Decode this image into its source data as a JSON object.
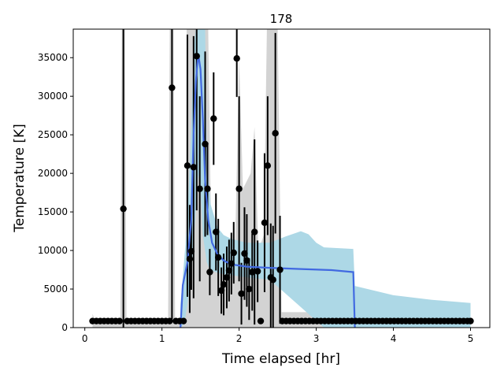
{
  "chart_data": {
    "type": "scatter",
    "title": "178",
    "xlabel": "Time elapsed [hr]",
    "ylabel": "Temperature [K]",
    "xlim": [
      -0.15,
      5.25
    ],
    "ylim": [
      0,
      38700
    ],
    "xticks": [
      0,
      1,
      2,
      3,
      4,
      5
    ],
    "yticks": [
      0,
      5000,
      10000,
      15000,
      20000,
      25000,
      30000,
      35000
    ],
    "grid": false,
    "legend": "none",
    "colors": {
      "points": "#000000",
      "fit_line": "#4169e1",
      "fit_band": "#add8e6",
      "gray_band": "#d3d3d3"
    },
    "points": [
      {
        "x": 0.1,
        "y": 850
      },
      {
        "x": 0.15,
        "y": 850
      },
      {
        "x": 0.2,
        "y": 850
      },
      {
        "x": 0.25,
        "y": 850
      },
      {
        "x": 0.3,
        "y": 850
      },
      {
        "x": 0.35,
        "y": 850
      },
      {
        "x": 0.4,
        "y": 850
      },
      {
        "x": 0.45,
        "y": 850
      },
      {
        "x": 0.5,
        "y": 15400,
        "err": 30000
      },
      {
        "x": 0.55,
        "y": 850
      },
      {
        "x": 0.6,
        "y": 850
      },
      {
        "x": 0.65,
        "y": 850
      },
      {
        "x": 0.7,
        "y": 850
      },
      {
        "x": 0.75,
        "y": 850
      },
      {
        "x": 0.8,
        "y": 850
      },
      {
        "x": 0.85,
        "y": 850
      },
      {
        "x": 0.9,
        "y": 850
      },
      {
        "x": 0.95,
        "y": 850
      },
      {
        "x": 1.0,
        "y": 850
      },
      {
        "x": 1.05,
        "y": 850
      },
      {
        "x": 1.1,
        "y": 850
      },
      {
        "x": 1.13,
        "y": 31100,
        "err": 30000
      },
      {
        "x": 1.18,
        "y": 850
      },
      {
        "x": 1.23,
        "y": 850
      },
      {
        "x": 1.28,
        "y": 850
      },
      {
        "x": 1.33,
        "y": 21000,
        "err": 17000
      },
      {
        "x": 1.36,
        "y": 8900,
        "err": 7000
      },
      {
        "x": 1.38,
        "y": 9900,
        "err": 5000
      },
      {
        "x": 1.41,
        "y": 20800,
        "err": 17000
      },
      {
        "x": 1.45,
        "y": 35200,
        "err": 20000
      },
      {
        "x": 1.49,
        "y": 18000,
        "err": 12000
      },
      {
        "x": 1.56,
        "y": 23800,
        "err": 12000
      },
      {
        "x": 1.59,
        "y": 18000,
        "err": 6000
      },
      {
        "x": 1.62,
        "y": 7200,
        "err": 3000
      },
      {
        "x": 1.67,
        "y": 27100,
        "err": 6000
      },
      {
        "x": 1.7,
        "y": 12400,
        "err": 5000
      },
      {
        "x": 1.73,
        "y": 9100,
        "err": 5000
      },
      {
        "x": 1.77,
        "y": 4800,
        "err": 3000
      },
      {
        "x": 1.8,
        "y": 5600,
        "err": 4000
      },
      {
        "x": 1.84,
        "y": 6500,
        "err": 4000
      },
      {
        "x": 1.87,
        "y": 7400,
        "err": 4000
      },
      {
        "x": 1.9,
        "y": 8300,
        "err": 4000
      },
      {
        "x": 1.93,
        "y": 9700,
        "err": 4000
      },
      {
        "x": 1.97,
        "y": 34900,
        "err": 5000
      },
      {
        "x": 2.0,
        "y": 18000,
        "err": 12000
      },
      {
        "x": 2.03,
        "y": 4400,
        "err": 4000
      },
      {
        "x": 2.07,
        "y": 9600,
        "err": 6000
      },
      {
        "x": 2.1,
        "y": 8700,
        "err": 6000
      },
      {
        "x": 2.13,
        "y": 5000,
        "err": 4000
      },
      {
        "x": 2.17,
        "y": 7200,
        "err": 5000
      },
      {
        "x": 2.2,
        "y": 12400,
        "err": 12000
      },
      {
        "x": 2.24,
        "y": 7300,
        "err": 4000
      },
      {
        "x": 2.28,
        "y": 850
      },
      {
        "x": 2.33,
        "y": 13600,
        "err": 9000
      },
      {
        "x": 2.37,
        "y": 21000,
        "err": 9000
      },
      {
        "x": 2.41,
        "y": 6500,
        "err": 7000
      },
      {
        "x": 2.44,
        "y": 6200,
        "err": 7000
      },
      {
        "x": 2.47,
        "y": 25200,
        "err": 13000
      },
      {
        "x": 2.53,
        "y": 7500,
        "err": 7000
      },
      {
        "x": 2.56,
        "y": 850
      },
      {
        "x": 2.61,
        "y": 850
      },
      {
        "x": 2.66,
        "y": 850
      },
      {
        "x": 2.71,
        "y": 850
      },
      {
        "x": 2.76,
        "y": 850
      },
      {
        "x": 2.81,
        "y": 850
      },
      {
        "x": 2.86,
        "y": 850
      },
      {
        "x": 2.91,
        "y": 850
      },
      {
        "x": 2.96,
        "y": 850
      },
      {
        "x": 3.01,
        "y": 850
      },
      {
        "x": 3.06,
        "y": 850
      },
      {
        "x": 3.11,
        "y": 850
      },
      {
        "x": 3.16,
        "y": 850
      },
      {
        "x": 3.21,
        "y": 850
      },
      {
        "x": 3.26,
        "y": 850
      },
      {
        "x": 3.31,
        "y": 850
      },
      {
        "x": 3.36,
        "y": 850
      },
      {
        "x": 3.41,
        "y": 850
      },
      {
        "x": 3.46,
        "y": 850
      },
      {
        "x": 3.51,
        "y": 850
      },
      {
        "x": 3.56,
        "y": 850
      },
      {
        "x": 3.61,
        "y": 850
      },
      {
        "x": 3.66,
        "y": 850
      },
      {
        "x": 3.71,
        "y": 850
      },
      {
        "x": 3.76,
        "y": 850
      },
      {
        "x": 3.81,
        "y": 850
      },
      {
        "x": 3.86,
        "y": 850
      },
      {
        "x": 3.91,
        "y": 850
      },
      {
        "x": 3.96,
        "y": 850
      },
      {
        "x": 4.01,
        "y": 850
      },
      {
        "x": 4.06,
        "y": 850
      },
      {
        "x": 4.11,
        "y": 850
      },
      {
        "x": 4.16,
        "y": 850
      },
      {
        "x": 4.21,
        "y": 850
      },
      {
        "x": 4.26,
        "y": 850
      },
      {
        "x": 4.31,
        "y": 850
      },
      {
        "x": 4.36,
        "y": 850
      },
      {
        "x": 4.41,
        "y": 850
      },
      {
        "x": 4.46,
        "y": 850
      },
      {
        "x": 4.51,
        "y": 850
      },
      {
        "x": 4.56,
        "y": 850
      },
      {
        "x": 4.61,
        "y": 850
      },
      {
        "x": 4.66,
        "y": 850
      },
      {
        "x": 4.71,
        "y": 850
      },
      {
        "x": 4.76,
        "y": 850
      },
      {
        "x": 4.81,
        "y": 850
      },
      {
        "x": 4.86,
        "y": 850
      },
      {
        "x": 4.91,
        "y": 850
      },
      {
        "x": 4.96,
        "y": 850
      },
      {
        "x": 5.0,
        "y": 850
      }
    ],
    "fit_line": [
      [
        1.24,
        0
      ],
      [
        1.27,
        5500
      ],
      [
        1.33,
        8500
      ],
      [
        1.38,
        14000
      ],
      [
        1.41,
        25000
      ],
      [
        1.44,
        32000
      ],
      [
        1.47,
        35500
      ],
      [
        1.5,
        33500
      ],
      [
        1.53,
        27000
      ],
      [
        1.56,
        19000
      ],
      [
        1.6,
        14000
      ],
      [
        1.65,
        11000
      ],
      [
        1.72,
        9500
      ],
      [
        1.8,
        8700
      ],
      [
        1.9,
        8200
      ],
      [
        2.1,
        7900
      ],
      [
        2.4,
        7750
      ],
      [
        2.8,
        7600
      ],
      [
        3.2,
        7450
      ],
      [
        3.48,
        7200
      ],
      [
        3.5,
        0
      ]
    ],
    "fit_band_upper": [
      [
        1.24,
        3000
      ],
      [
        1.29,
        9000
      ],
      [
        1.33,
        14000
      ],
      [
        1.38,
        26000
      ],
      [
        1.41,
        36000
      ],
      [
        1.44,
        38700
      ],
      [
        1.56,
        38700
      ],
      [
        1.58,
        22000
      ],
      [
        1.63,
        16000
      ],
      [
        1.72,
        13000
      ],
      [
        1.8,
        12000
      ],
      [
        1.9,
        11500
      ],
      [
        2.1,
        11000
      ],
      [
        2.4,
        11000
      ],
      [
        2.6,
        11800
      ],
      [
        2.8,
        12500
      ],
      [
        2.9,
        12100
      ],
      [
        3.0,
        11000
      ],
      [
        3.1,
        10400
      ],
      [
        3.48,
        10200
      ],
      [
        3.5,
        5400
      ],
      [
        4.0,
        4200
      ],
      [
        4.5,
        3600
      ],
      [
        5.0,
        3200
      ]
    ],
    "fit_band_lower": [
      [
        5.0,
        0
      ],
      [
        3.5,
        0
      ],
      [
        3.1,
        0
      ],
      [
        2.4,
        6200
      ],
      [
        2.1,
        6500
      ],
      [
        1.9,
        6800
      ],
      [
        1.75,
        7000
      ],
      [
        1.62,
        7500
      ],
      [
        1.58,
        8500
      ],
      [
        1.53,
        12000
      ],
      [
        1.5,
        18000
      ],
      [
        1.47,
        20000
      ],
      [
        1.43,
        14000
      ],
      [
        1.38,
        7000
      ],
      [
        1.33,
        3000
      ],
      [
        1.29,
        500
      ],
      [
        1.24,
        0
      ]
    ],
    "gray_band_upper": [
      [
        0.1,
        1800
      ],
      [
        0.12,
        1200
      ],
      [
        0.46,
        1200
      ],
      [
        0.48,
        38700
      ],
      [
        0.52,
        38700
      ],
      [
        0.54,
        1200
      ],
      [
        1.08,
        1200
      ],
      [
        1.1,
        38700
      ],
      [
        1.15,
        38700
      ],
      [
        1.17,
        1200
      ],
      [
        1.3,
        1200
      ],
      [
        1.32,
        38700
      ],
      [
        1.6,
        38700
      ],
      [
        1.64,
        10000
      ],
      [
        1.95,
        11000
      ],
      [
        2.0,
        35000
      ],
      [
        2.05,
        18000
      ],
      [
        2.15,
        20000
      ],
      [
        2.2,
        26000
      ],
      [
        2.25,
        10000
      ],
      [
        2.32,
        12000
      ],
      [
        2.36,
        38700
      ],
      [
        2.5,
        38700
      ],
      [
        2.55,
        2000
      ],
      [
        3.1,
        2000
      ],
      [
        3.12,
        1200
      ],
      [
        5.0,
        1200
      ]
    ]
  }
}
